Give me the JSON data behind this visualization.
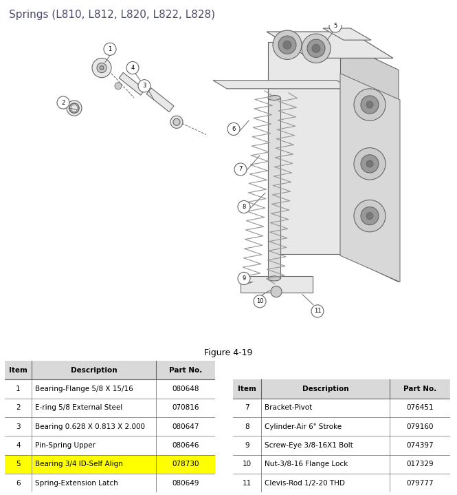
{
  "title": "Springs (L810, L812, L820, L822, L828)",
  "figure_label": "Figure 4-19",
  "title_color": "#4a4a6a",
  "background_color": "#ffffff",
  "left_table": {
    "headers": [
      "Item",
      "Description",
      "Part No."
    ],
    "rows": [
      [
        "1",
        "Bearing-Flange 5/8 X 15/16",
        "080648"
      ],
      [
        "2",
        "E-ring 5/8 External Steel",
        "070816"
      ],
      [
        "3",
        "Bearing 0.628 X 0.813 X 2.000",
        "080647"
      ],
      [
        "4",
        "Pin-Spring Upper",
        "080646"
      ],
      [
        "5",
        "Bearing 3/4 ID-Self Align",
        "078730"
      ],
      [
        "6",
        "Spring-Extension Latch",
        "080649"
      ]
    ],
    "highlight_row": 4,
    "highlight_color": "#ffff00"
  },
  "right_table": {
    "headers": [
      "Item",
      "Description",
      "Part No."
    ],
    "rows": [
      [
        "7",
        "Bracket-Pivot",
        "076451"
      ],
      [
        "8",
        "Cylinder-Air 6\" Stroke",
        "079160"
      ],
      [
        "9",
        "Screw-Eye 3/8-16X1 Bolt",
        "074397"
      ],
      [
        "10",
        "Nut-3/8-16 Flange Lock",
        "017329"
      ],
      [
        "11",
        "Clevis-Rod 1/2-20 THD",
        "079777"
      ]
    ]
  },
  "header_bg_color": "#d9d9d9",
  "border_color": "#666666",
  "text_color": "#000000",
  "font_size_title": 11,
  "font_size_table": 8,
  "font_size_figure": 9
}
